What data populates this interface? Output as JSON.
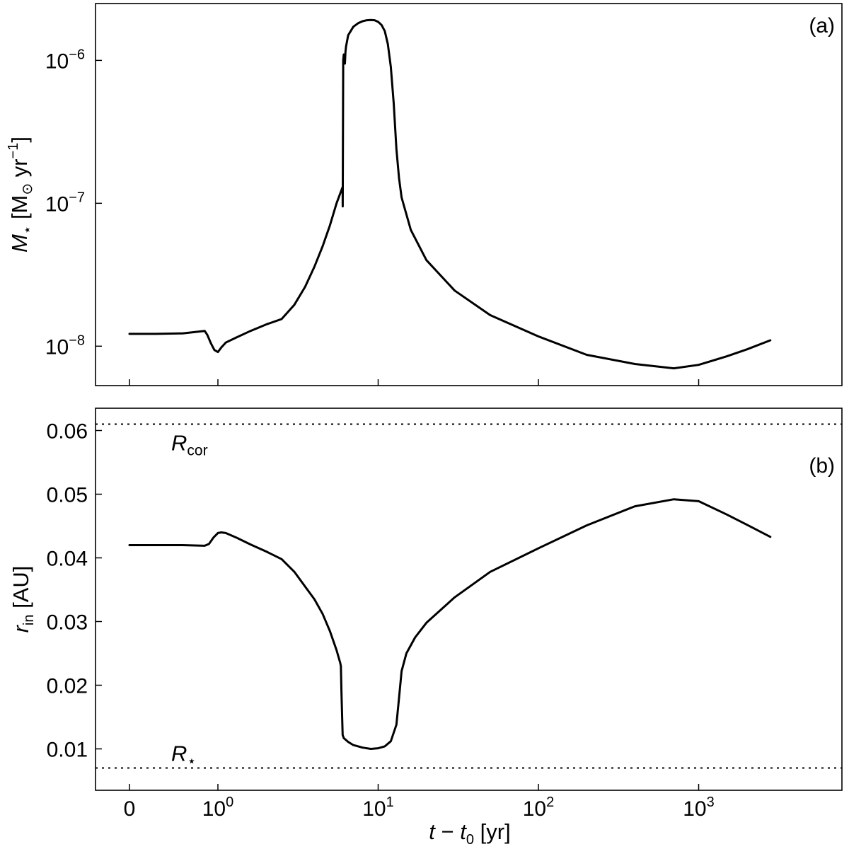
{
  "chart_data": [
    {
      "type": "line",
      "panel_label": "(a)",
      "x_scale": "symlog (linear 0–1, log above)",
      "y_scale": "log",
      "xlim": [
        -0.1,
        3000
      ],
      "ylim": [
        0.0053,
        2.5e-06
      ],
      "yticks": [
        {
          "value": 1e-08,
          "base": "10",
          "exp": "−8"
        },
        {
          "value": 1e-07,
          "base": "10",
          "exp": "−7"
        },
        {
          "value": 1e-06,
          "base": "10",
          "exp": "−6"
        }
      ],
      "ylabel": {
        "main": "M",
        "sub": "⋆",
        "unit_open": " [M",
        "sun": "⊙",
        "unit_mid": " yr",
        "exp": "−1",
        "unit_close": "]"
      },
      "xticks_unlabeled": [
        0,
        1,
        10,
        100,
        1000
      ],
      "series": [
        {
          "x": [
            0,
            0.3,
            0.6,
            0.85,
            0.88,
            0.92,
            0.96,
            1.0,
            1.05,
            1.12,
            1.3,
            1.6,
            2.0,
            2.5,
            3.0,
            3.5,
            4.0,
            4.5,
            5.0,
            5.5,
            6.0,
            6.01,
            6.05,
            6.1,
            6.2,
            6.25,
            6.3,
            6.5,
            7.0,
            7.5,
            8.0,
            8.5,
            9.0,
            9.5,
            10.0,
            10.5,
            11.0,
            11.5,
            12.0,
            12.5,
            13.0,
            13.5,
            14.0,
            16.0,
            20.0,
            30.0,
            50.0,
            100.0,
            200.0,
            400.0,
            700.0,
            1000.0,
            1500.0,
            2000.0,
            2800.0
          ],
          "y": [
            1.22e-08,
            1.22e-08,
            1.23e-08,
            1.28e-08,
            1.2e-08,
            1.05e-08,
            9.4e-09,
            9.1e-09,
            9.8e-09,
            1.06e-08,
            1.15e-08,
            1.28e-08,
            1.42e-08,
            1.55e-08,
            1.95e-08,
            2.6e-08,
            3.6e-08,
            5e-08,
            7e-08,
            1e-07,
            1.3e-07,
            9.5e-08,
            1e-06,
            1.1e-06,
            9.5e-07,
            1.15e-06,
            1.25e-06,
            1.5e-06,
            1.72e-06,
            1.82e-06,
            1.88e-06,
            1.91e-06,
            1.92e-06,
            1.91e-06,
            1.86e-06,
            1.77e-06,
            1.6e-06,
            1.3e-06,
            9e-07,
            5e-07,
            2.4e-07,
            1.5e-07,
            1.1e-07,
            6.5e-08,
            4e-08,
            2.45e-08,
            1.65e-08,
            1.17e-08,
            8.7e-09,
            7.5e-09,
            7e-09,
            7.4e-09,
            8.5e-09,
            9.5e-09,
            1.1e-08
          ]
        }
      ]
    },
    {
      "type": "line",
      "panel_label": "(b)",
      "x_scale": "symlog (linear 0–1, log above)",
      "y_scale": "linear",
      "xlim": [
        -0.1,
        3000
      ],
      "ylim": [
        0.0035,
        0.0635
      ],
      "yticks": [
        0.01,
        0.02,
        0.03,
        0.04,
        0.05,
        0.06
      ],
      "ytick_labels": [
        "0.01",
        "0.02",
        "0.03",
        "0.04",
        "0.05",
        "0.06"
      ],
      "xticks": [
        {
          "value": 0,
          "base": "0",
          "exp": ""
        },
        {
          "value": 1,
          "base": "10",
          "exp": "0"
        },
        {
          "value": 10,
          "base": "10",
          "exp": "1"
        },
        {
          "value": 100,
          "base": "10",
          "exp": "2"
        },
        {
          "value": 1000,
          "base": "10",
          "exp": "3"
        }
      ],
      "ylabel": {
        "main": "r",
        "sub": "in",
        "unit": " [AU]"
      },
      "xlabel": {
        "t": "t",
        "minus": " − ",
        "t0": "t",
        "sub0": "0",
        "unit": " [yr]"
      },
      "reference_lines": [
        {
          "y": 0.061,
          "label": "R",
          "sub": "cor",
          "style": "dotted"
        },
        {
          "y": 0.007,
          "label": "R",
          "sub": "⋆",
          "style": "dotted"
        }
      ],
      "series": [
        {
          "x": [
            0,
            0.3,
            0.6,
            0.85,
            0.9,
            0.95,
            1.0,
            1.05,
            1.12,
            1.3,
            1.6,
            2.0,
            2.5,
            3.0,
            3.5,
            4.0,
            4.5,
            5.0,
            5.5,
            5.8,
            5.85,
            5.9,
            6.0,
            6.1,
            6.5,
            7.0,
            8.0,
            9.0,
            10.0,
            11.0,
            12.0,
            13.0,
            13.5,
            14.0,
            15.0,
            17.0,
            20.0,
            30.0,
            50.0,
            100.0,
            200.0,
            400.0,
            700.0,
            1000.0,
            1500.0,
            2000.0,
            2800.0
          ],
          "y": [
            0.042,
            0.042,
            0.042,
            0.0419,
            0.0422,
            0.0432,
            0.0439,
            0.044,
            0.0439,
            0.0432,
            0.0421,
            0.041,
            0.0398,
            0.0378,
            0.0355,
            0.0335,
            0.0312,
            0.0285,
            0.0255,
            0.0235,
            0.023,
            0.019,
            0.0122,
            0.0117,
            0.0111,
            0.0106,
            0.0102,
            0.01,
            0.0101,
            0.0104,
            0.0112,
            0.0138,
            0.018,
            0.0222,
            0.025,
            0.0275,
            0.0298,
            0.0338,
            0.0378,
            0.0415,
            0.0451,
            0.0481,
            0.0492,
            0.0489,
            0.0468,
            0.0452,
            0.0433
          ]
        }
      ]
    }
  ]
}
